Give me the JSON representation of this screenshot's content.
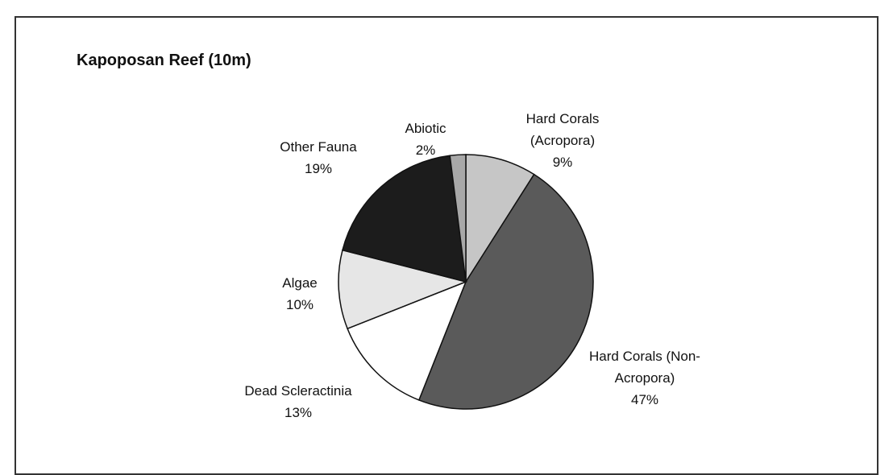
{
  "chart_data": {
    "type": "pie",
    "title": "Kapoposan Reef (10m)",
    "categories": [
      "Hard Corals (Acropora)",
      "Hard Corals (Non-Acropora)",
      "Dead Scleractinia",
      "Algae",
      "Other Fauna",
      "Abiotic"
    ],
    "values": [
      9,
      47,
      13,
      10,
      19,
      2
    ],
    "value_labels": [
      "9%",
      "47%",
      "13%",
      "10%",
      "19%",
      "2%"
    ],
    "colors": [
      "#c6c6c6",
      "#5a5a5a",
      "#ffffff",
      "#e6e6e6",
      "#1c1c1c",
      "#a8a8a8"
    ]
  }
}
